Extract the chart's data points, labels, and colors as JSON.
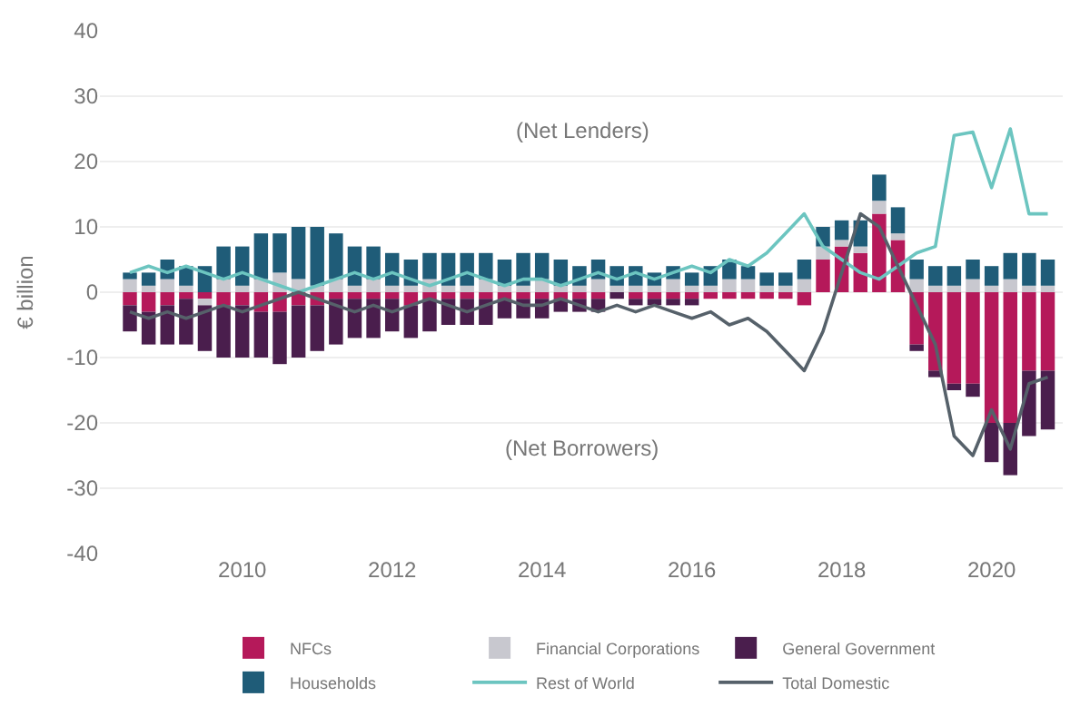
{
  "chart_data": {
    "type": "bar",
    "stacked": true,
    "ylabel": "€ billion",
    "annotations": [
      "(Net Lenders)",
      "(Net Borrowers)"
    ],
    "x": [
      2008.5,
      2008.75,
      2009,
      2009.25,
      2009.5,
      2009.75,
      2010,
      2010.25,
      2010.5,
      2010.75,
      2011,
      2011.25,
      2011.5,
      2011.75,
      2012,
      2012.25,
      2012.5,
      2012.75,
      2013,
      2013.25,
      2013.5,
      2013.75,
      2014,
      2014.25,
      2014.5,
      2014.75,
      2015,
      2015.25,
      2015.5,
      2015.75,
      2016,
      2016.25,
      2016.5,
      2016.75,
      2017,
      2017.25,
      2017.5,
      2017.75,
      2018,
      2018.25,
      2018.5,
      2018.75,
      2019,
      2019.25,
      2019.5,
      2019.75,
      2020,
      2020.25,
      2020.5,
      2020.75
    ],
    "xlim": [
      2008.1,
      2020.95
    ],
    "xticks": [
      2010,
      2012,
      2014,
      2016,
      2018,
      2020
    ],
    "ylim": [
      -40,
      40
    ],
    "yticks": [
      -40,
      -30,
      -20,
      -10,
      0,
      10,
      20,
      30,
      40
    ],
    "grid": "y",
    "legend": "bottom",
    "marker": "none",
    "line_style": "solid",
    "series": [
      {
        "name": "NFCs",
        "color": "#b5195a",
        "values": [
          -2,
          -3,
          -2,
          -1,
          -1,
          -2,
          -2,
          -3,
          -3,
          -2,
          -2,
          -1,
          -1,
          -1,
          -1,
          -2,
          -1,
          -1,
          -1,
          -1,
          -1,
          -1,
          -1,
          -1,
          -1,
          -1,
          0,
          -1,
          -1,
          -1,
          -1,
          -1,
          -1,
          -1,
          -1,
          -1,
          -2,
          5,
          7,
          6,
          12,
          8,
          -8,
          -12,
          -14,
          -14,
          -20,
          -20,
          -12,
          -12
        ]
      },
      {
        "name": "Financial Corporations",
        "color": "#c8c8cf",
        "values": [
          2,
          1,
          2,
          1,
          -1,
          2,
          1,
          2,
          3,
          2,
          1,
          2,
          1,
          2,
          1,
          1,
          2,
          1,
          1,
          2,
          1,
          1,
          2,
          1,
          1,
          2,
          1,
          1,
          1,
          2,
          1,
          1,
          2,
          2,
          1,
          1,
          2,
          2,
          1,
          1,
          2,
          1,
          2,
          1,
          1,
          2,
          1,
          2,
          1,
          1
        ]
      },
      {
        "name": "General Government",
        "color": "#4a1e4d",
        "values": [
          -4,
          -5,
          -6,
          -7,
          -7,
          -8,
          -8,
          -7,
          -8,
          -8,
          -7,
          -7,
          -6,
          -6,
          -5,
          -5,
          -5,
          -4,
          -4,
          -4,
          -3,
          -3,
          -3,
          -2,
          -2,
          -2,
          -1,
          -1,
          -1,
          -1,
          -1,
          0,
          0,
          0,
          0,
          0,
          0,
          0,
          0,
          0,
          0,
          0,
          -1,
          -1,
          -1,
          -2,
          -6,
          -8,
          -10,
          -9
        ]
      },
      {
        "name": "Households",
        "color": "#1f5c78",
        "values": [
          1,
          2,
          3,
          3,
          4,
          5,
          6,
          7,
          6,
          8,
          9,
          7,
          6,
          5,
          5,
          4,
          4,
          5,
          5,
          4,
          4,
          5,
          4,
          4,
          3,
          3,
          3,
          3,
          2,
          2,
          2,
          3,
          3,
          2,
          2,
          2,
          3,
          3,
          3,
          4,
          4,
          4,
          3,
          3,
          3,
          3,
          3,
          4,
          5,
          4
        ]
      },
      {
        "name": "Rest of World",
        "type": "line",
        "color": "#6cc5c0",
        "values": [
          3,
          4,
          3,
          4,
          3,
          2,
          3,
          2,
          1,
          0,
          1,
          2,
          3,
          2,
          3,
          2,
          1,
          2,
          3,
          2,
          1,
          2,
          2,
          1,
          2,
          3,
          2,
          3,
          2,
          3,
          4,
          3,
          5,
          4,
          6,
          9,
          12,
          7,
          5,
          3,
          2,
          4,
          6,
          7,
          24,
          24.5,
          16,
          25,
          12,
          12
        ]
      },
      {
        "name": "Total Domestic",
        "type": "line",
        "color": "#56616a",
        "values": [
          -3,
          -4,
          -3,
          -4,
          -3,
          -2,
          -3,
          -2,
          -1,
          0,
          -1,
          -2,
          -3,
          -2,
          -3,
          -2,
          -1,
          -2,
          -3,
          -2,
          -1,
          -2,
          -2,
          -1,
          -2,
          -3,
          -2,
          -3,
          -2,
          -3,
          -4,
          -3,
          -5,
          -4,
          -6,
          -9,
          -12,
          -6,
          3,
          12,
          10,
          4,
          -2,
          -8,
          -22,
          -25,
          -18,
          -24,
          -14,
          -13
        ]
      }
    ]
  }
}
